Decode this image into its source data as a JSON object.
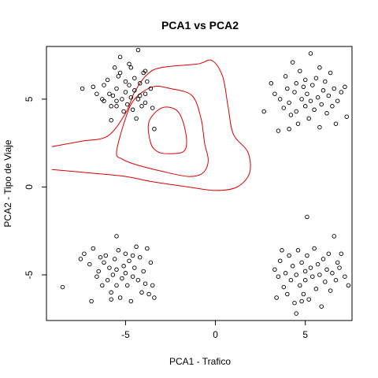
{
  "chart_data": {
    "type": "scatter",
    "title": "PCA1 vs PCA2",
    "xlabel": "PCA1 - Trafico",
    "ylabel": "PCA2 - Tipo de Viaje",
    "xlim": [
      -9.4,
      7.6
    ],
    "ylim": [
      -7.6,
      8.0
    ],
    "x_ticks": [
      -5,
      0,
      5
    ],
    "y_ticks": [
      -5,
      0,
      5
    ],
    "grid": false,
    "legend": "none",
    "point_color": "#000000",
    "contour_color": "#dd0000",
    "contours": [
      {
        "name": "",
        "points": [
          [
            -9.1,
            2.3
          ],
          [
            -7.5,
            2.6
          ],
          [
            -6.0,
            2.9
          ],
          [
            -5.0,
            4.2
          ],
          [
            -4.5,
            5.4
          ],
          [
            -3.8,
            6.4
          ],
          [
            -3.0,
            6.8
          ],
          [
            -1.0,
            7.0
          ],
          [
            -0.2,
            7.2
          ],
          [
            0.4,
            6.3
          ],
          [
            0.7,
            4.6
          ],
          [
            1.0,
            3.0
          ],
          [
            1.8,
            2.0
          ],
          [
            1.9,
            0.8
          ],
          [
            1.2,
            0.0
          ],
          [
            0.0,
            -0.2
          ],
          [
            -1.5,
            0.0
          ],
          [
            -3.5,
            0.3
          ],
          [
            -5.0,
            0.6
          ],
          [
            -7.0,
            0.8
          ],
          [
            -9.1,
            1.0
          ]
        ]
      },
      {
        "name": "",
        "points": [
          [
            -5.5,
            2.0
          ],
          [
            -5.0,
            3.9
          ],
          [
            -4.5,
            5.0
          ],
          [
            -3.5,
            5.7
          ],
          [
            -2.5,
            5.6
          ],
          [
            -1.3,
            5.2
          ],
          [
            -0.8,
            3.9
          ],
          [
            -0.6,
            2.5
          ],
          [
            -0.4,
            1.5
          ],
          [
            -0.7,
            0.8
          ],
          [
            -1.5,
            0.6
          ],
          [
            -3.0,
            0.9
          ],
          [
            -4.5,
            1.3
          ],
          [
            -5.2,
            1.6
          ]
        ]
      },
      {
        "name": "",
        "points": [
          [
            -3.6,
            2.5
          ],
          [
            -3.7,
            3.7
          ],
          [
            -3.0,
            4.5
          ],
          [
            -2.2,
            4.4
          ],
          [
            -1.8,
            3.7
          ],
          [
            -1.6,
            2.6
          ],
          [
            -1.8,
            2.0
          ],
          [
            -2.6,
            1.9
          ],
          [
            -3.2,
            2.0
          ]
        ]
      }
    ],
    "series": [
      {
        "name": "",
        "points": [
          [
            -7.4,
            5.6
          ],
          [
            -6.8,
            5.7
          ],
          [
            -6.6,
            5.3
          ],
          [
            -6.3,
            5.0
          ],
          [
            -6.2,
            5.8
          ],
          [
            -6.0,
            6.1
          ],
          [
            -5.9,
            5.3
          ],
          [
            -5.8,
            4.6
          ],
          [
            -5.7,
            5.2
          ],
          [
            -5.6,
            6.8
          ],
          [
            -5.5,
            5.6
          ],
          [
            -5.5,
            4.9
          ],
          [
            -5.4,
            6.3
          ],
          [
            -5.3,
            7.4
          ],
          [
            -5.2,
            5.0
          ],
          [
            -5.1,
            4.3
          ],
          [
            -5.0,
            6.0
          ],
          [
            -5.0,
            5.4
          ],
          [
            -4.9,
            4.7
          ],
          [
            -4.8,
            7.0
          ],
          [
            -4.8,
            5.8
          ],
          [
            -4.7,
            5.1
          ],
          [
            -4.6,
            4.4
          ],
          [
            -4.5,
            6.2
          ],
          [
            -4.5,
            5.5
          ],
          [
            -4.4,
            3.9
          ],
          [
            -4.3,
            7.8
          ],
          [
            -4.2,
            5.9
          ],
          [
            -4.2,
            5.2
          ],
          [
            -4.1,
            4.6
          ],
          [
            -4.0,
            6.5
          ],
          [
            -3.9,
            5.3
          ],
          [
            -3.9,
            4.8
          ],
          [
            -3.8,
            6.0
          ],
          [
            -3.6,
            5.6
          ],
          [
            -3.5,
            4.5
          ],
          [
            -3.4,
            3.3
          ],
          [
            -5.8,
            3.8
          ],
          [
            -6.2,
            4.9
          ],
          [
            -5.3,
            6.5
          ],
          [
            -4.7,
            6.8
          ],
          [
            -4.3,
            5.0
          ],
          [
            -3.9,
            6.6
          ],
          [
            -5.5,
            4.6
          ]
        ]
      },
      {
        "name": "",
        "points": [
          [
            3.1,
            5.9
          ],
          [
            3.3,
            5.3
          ],
          [
            3.6,
            5.0
          ],
          [
            3.8,
            4.5
          ],
          [
            3.9,
            6.3
          ],
          [
            4.0,
            5.6
          ],
          [
            4.1,
            4.8
          ],
          [
            4.2,
            4.1
          ],
          [
            4.3,
            7.1
          ],
          [
            4.4,
            5.4
          ],
          [
            4.5,
            5.9
          ],
          [
            4.5,
            4.3
          ],
          [
            4.6,
            3.6
          ],
          [
            4.7,
            6.6
          ],
          [
            4.8,
            5.0
          ],
          [
            4.9,
            5.7
          ],
          [
            5.0,
            4.6
          ],
          [
            5.0,
            6.1
          ],
          [
            5.1,
            5.3
          ],
          [
            5.2,
            3.9
          ],
          [
            5.3,
            7.6
          ],
          [
            5.3,
            4.9
          ],
          [
            5.4,
            5.8
          ],
          [
            5.5,
            4.4
          ],
          [
            5.6,
            6.2
          ],
          [
            5.7,
            5.1
          ],
          [
            5.8,
            6.8
          ],
          [
            5.8,
            3.4
          ],
          [
            5.9,
            4.7
          ],
          [
            6.0,
            5.5
          ],
          [
            6.1,
            6.0
          ],
          [
            6.2,
            4.2
          ],
          [
            6.3,
            5.2
          ],
          [
            6.4,
            6.5
          ],
          [
            6.5,
            4.6
          ],
          [
            6.6,
            5.6
          ],
          [
            6.8,
            4.9
          ],
          [
            7.0,
            5.4
          ],
          [
            7.2,
            5.7
          ],
          [
            7.3,
            4.0
          ],
          [
            3.5,
            3.2
          ],
          [
            4.1,
            3.3
          ],
          [
            6.7,
            3.6
          ],
          [
            2.7,
            4.3
          ]
        ]
      },
      {
        "name": "",
        "points": [
          [
            -7.5,
            -4.1
          ],
          [
            -7.3,
            -3.8
          ],
          [
            -7.0,
            -4.4
          ],
          [
            -6.8,
            -3.5
          ],
          [
            -6.6,
            -5.1
          ],
          [
            -6.5,
            -4.8
          ],
          [
            -6.3,
            -5.6
          ],
          [
            -6.2,
            -4.3
          ],
          [
            -6.1,
            -3.9
          ],
          [
            -6.0,
            -5.3
          ],
          [
            -5.9,
            -4.6
          ],
          [
            -5.8,
            -6.0
          ],
          [
            -5.7,
            -5.0
          ],
          [
            -5.6,
            -4.1
          ],
          [
            -5.5,
            -4.7
          ],
          [
            -5.5,
            -5.6
          ],
          [
            -5.4,
            -3.6
          ],
          [
            -5.3,
            -6.3
          ],
          [
            -5.2,
            -5.2
          ],
          [
            -5.1,
            -4.5
          ],
          [
            -5.0,
            -3.8
          ],
          [
            -5.0,
            -4.9
          ],
          [
            -4.9,
            -5.6
          ],
          [
            -4.8,
            -4.2
          ],
          [
            -4.7,
            -6.5
          ],
          [
            -4.6,
            -5.1
          ],
          [
            -4.5,
            -4.6
          ],
          [
            -4.4,
            -3.4
          ],
          [
            -4.3,
            -5.3
          ],
          [
            -4.2,
            -4.0
          ],
          [
            -4.1,
            -6.0
          ],
          [
            -4.0,
            -4.8
          ],
          [
            -3.9,
            -5.5
          ],
          [
            -3.8,
            -3.5
          ],
          [
            -3.6,
            -4.3
          ],
          [
            -3.4,
            -6.3
          ],
          [
            -3.5,
            -5.6
          ],
          [
            -3.7,
            -6.1
          ],
          [
            -5.5,
            -2.8
          ],
          [
            -6.9,
            -6.5
          ],
          [
            -8.5,
            -5.7
          ],
          [
            -4.6,
            -3.9
          ],
          [
            -6.4,
            -4.0
          ],
          [
            -5.8,
            -6.4
          ]
        ]
      },
      {
        "name": "",
        "points": [
          [
            3.3,
            -4.7
          ],
          [
            3.5,
            -5.1
          ],
          [
            3.6,
            -4.2
          ],
          [
            3.8,
            -5.7
          ],
          [
            3.9,
            -4.9
          ],
          [
            4.0,
            -6.1
          ],
          [
            4.1,
            -3.9
          ],
          [
            4.2,
            -5.3
          ],
          [
            4.3,
            -4.5
          ],
          [
            4.4,
            -6.6
          ],
          [
            4.5,
            -5.0
          ],
          [
            4.6,
            -3.6
          ],
          [
            4.7,
            -5.6
          ],
          [
            4.8,
            -4.3
          ],
          [
            4.9,
            -6.1
          ],
          [
            5.0,
            -4.8
          ],
          [
            5.0,
            -5.3
          ],
          [
            5.1,
            -3.9
          ],
          [
            5.2,
            -6.4
          ],
          [
            5.3,
            -4.6
          ],
          [
            5.4,
            -5.1
          ],
          [
            5.5,
            -3.5
          ],
          [
            5.6,
            -5.8
          ],
          [
            5.7,
            -4.4
          ],
          [
            5.8,
            -5.0
          ],
          [
            5.9,
            -6.8
          ],
          [
            6.0,
            -4.1
          ],
          [
            6.1,
            -5.4
          ],
          [
            6.2,
            -4.7
          ],
          [
            6.3,
            -3.8
          ],
          [
            6.4,
            -5.9
          ],
          [
            6.5,
            -4.9
          ],
          [
            6.7,
            -5.3
          ],
          [
            6.8,
            -4.3
          ],
          [
            7.0,
            -3.8
          ],
          [
            7.2,
            -5.1
          ],
          [
            7.4,
            -5.6
          ],
          [
            6.6,
            -2.8
          ],
          [
            5.1,
            -1.7
          ],
          [
            4.5,
            -7.2
          ],
          [
            3.4,
            -6.3
          ],
          [
            6.9,
            -4.6
          ],
          [
            3.7,
            -3.6
          ],
          [
            4.8,
            -6.5
          ]
        ]
      }
    ]
  }
}
